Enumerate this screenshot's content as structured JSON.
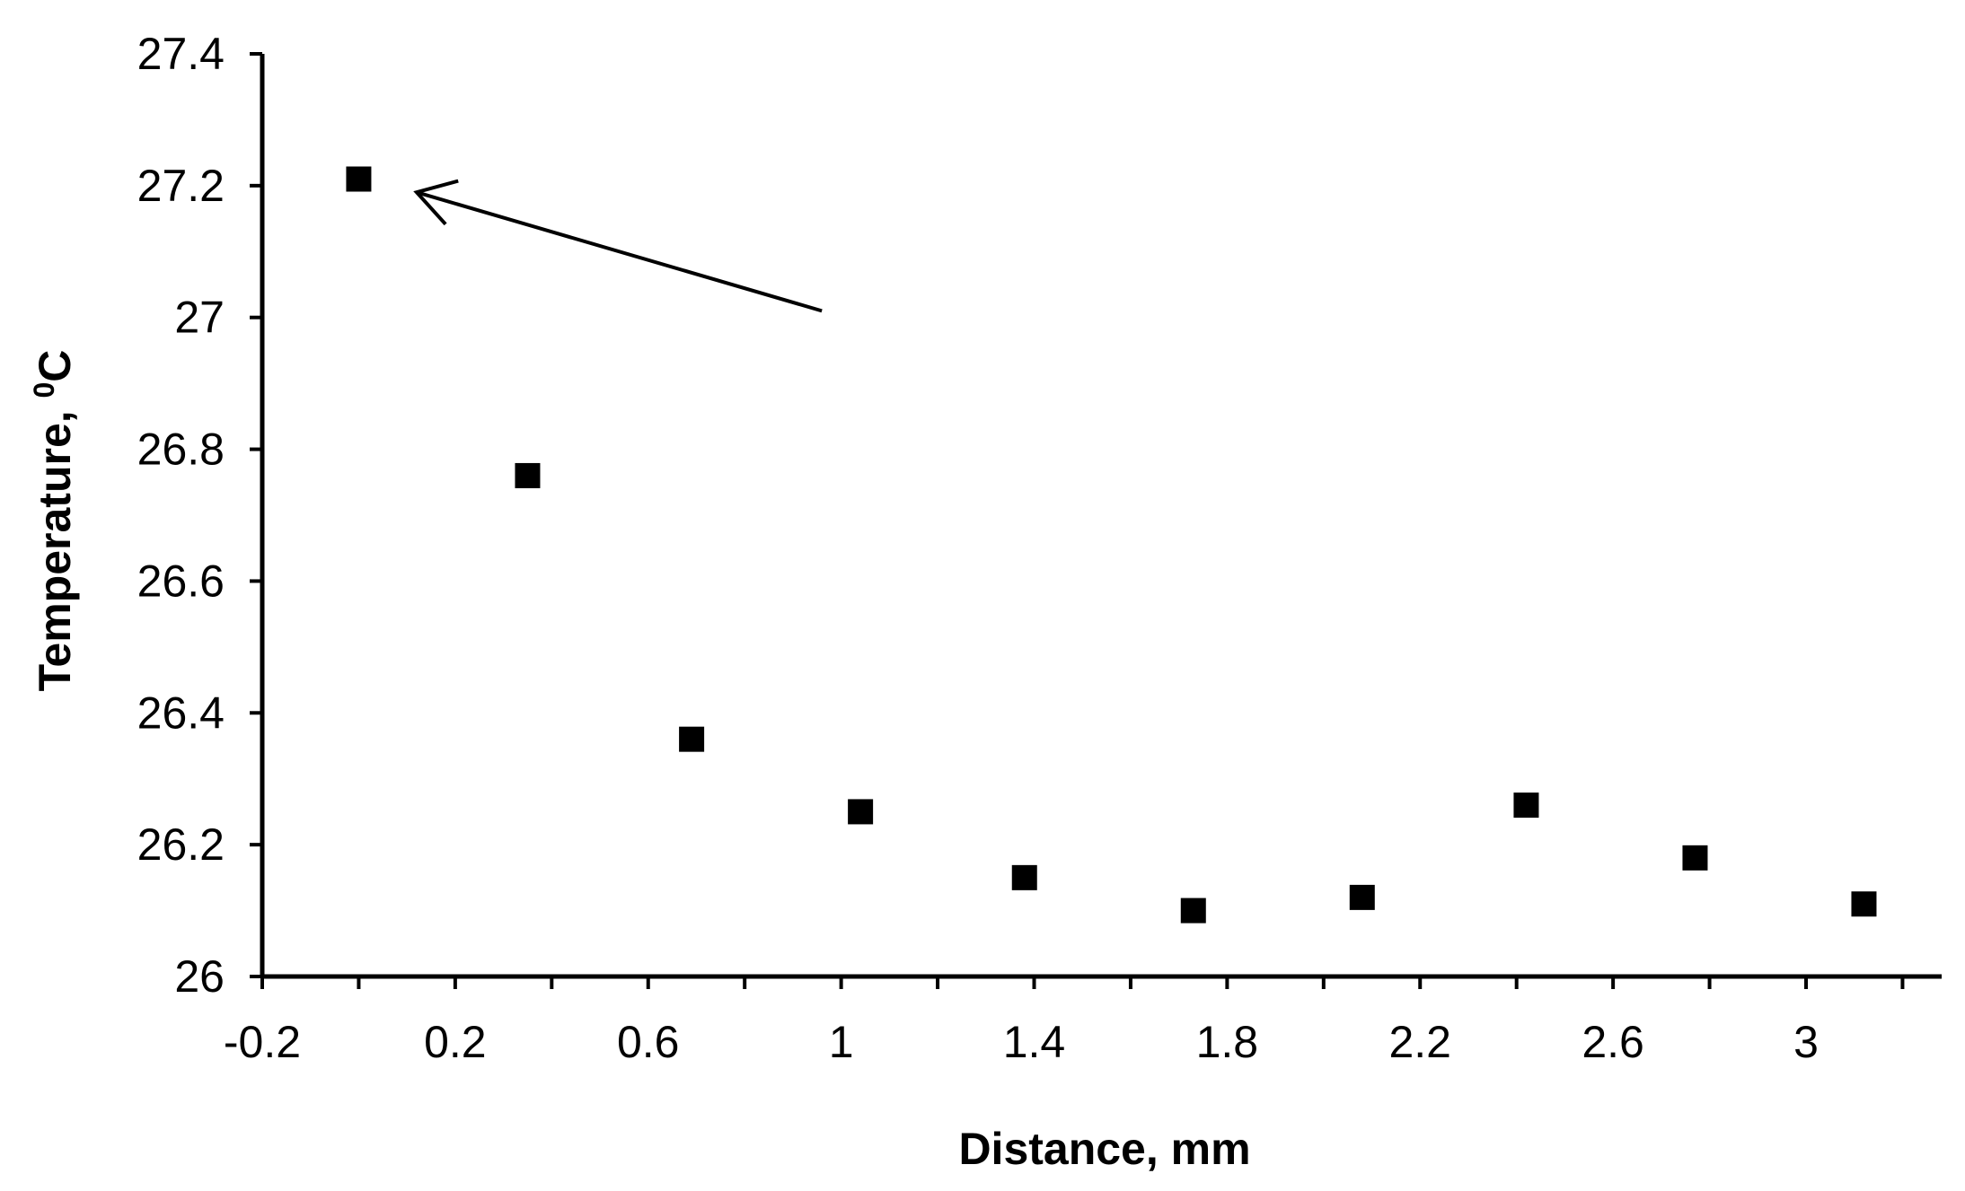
{
  "chart_data": {
    "type": "scatter",
    "xlabel": "Distance, mm",
    "ylabel_main": "Temperature, ",
    "ylabel_sup": "0",
    "ylabel_unit": "C",
    "xlim": [
      -0.2,
      3.3
    ],
    "ylim": [
      26,
      27.4
    ],
    "x_ticks": [
      -0.2,
      0.2,
      0.6,
      1,
      1.4,
      1.8,
      2.2,
      2.6,
      3
    ],
    "x_tick_labels": [
      "-0.2",
      "0.2",
      "0.6",
      "1",
      "1.4",
      "1.8",
      "2.2",
      "2.6",
      "3"
    ],
    "x_minor_ticks": [
      0,
      0.4,
      0.8,
      1.2,
      1.6,
      2.0,
      2.4,
      2.8,
      3.2
    ],
    "y_ticks": [
      26,
      26.2,
      26.4,
      26.6,
      26.8,
      27,
      27.2,
      27.4
    ],
    "y_tick_labels": [
      "26",
      "26.2",
      "26.4",
      "26.6",
      "26.8",
      "27",
      "27.2",
      "27.4"
    ],
    "grid": false,
    "legend": "none",
    "marker": "square",
    "marker_color": "#000000",
    "series": [
      {
        "x": [
          0,
          0.35,
          0.69,
          1.04,
          1.38,
          1.73,
          2.08,
          2.42,
          2.77,
          3.12
        ],
        "y": [
          27.21,
          26.76,
          26.36,
          26.25,
          26.15,
          26.1,
          26.12,
          26.26,
          26.18,
          26.11
        ]
      }
    ],
    "annotations": [
      {
        "type": "arrow",
        "from": [
          0.96,
          27.01
        ],
        "to": [
          0.12,
          27.19
        ]
      }
    ]
  }
}
